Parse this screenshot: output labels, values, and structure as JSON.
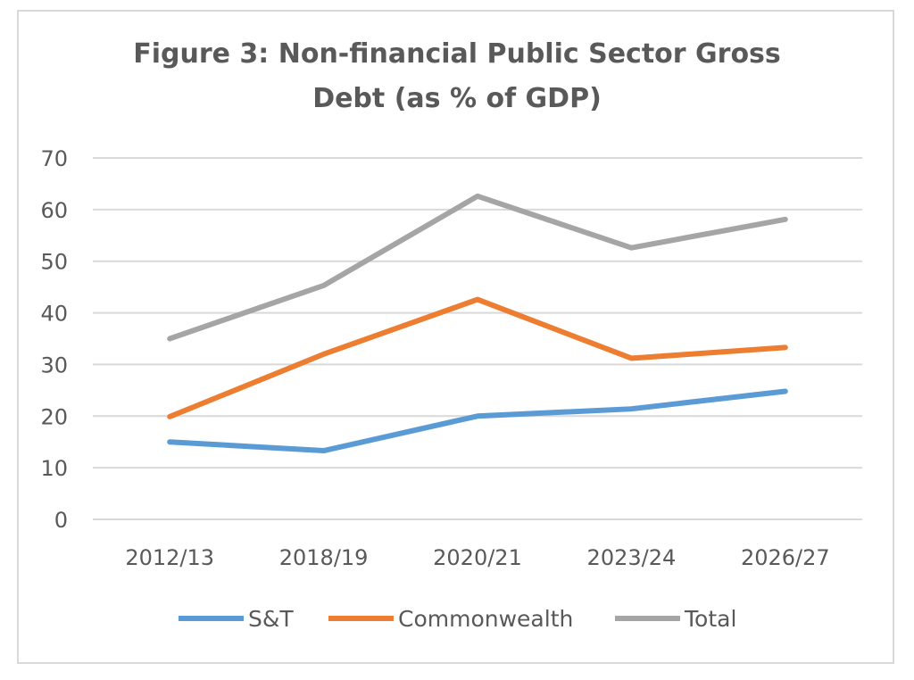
{
  "chart_data": {
    "type": "line",
    "title_lines": [
      "Figure 3: Non-financial Public Sector Gross",
      "Debt (as % of GDP)"
    ],
    "categories": [
      "2012/13",
      "2018/19",
      "2020/21",
      "2023/24",
      "2026/27"
    ],
    "series": [
      {
        "name": "S&T",
        "color": "#5b9bd5",
        "values": [
          15,
          13.3,
          20,
          21.4,
          24.8
        ]
      },
      {
        "name": "Commonwealth",
        "color": "#ed7d31",
        "values": [
          19.9,
          32,
          42.6,
          31.2,
          33.3
        ]
      },
      {
        "name": "Total",
        "color": "#a5a5a5",
        "values": [
          35,
          45.3,
          62.6,
          52.6,
          58.1
        ]
      }
    ],
    "ylim": [
      0,
      70
    ],
    "yticks": [
      0,
      10,
      20,
      30,
      40,
      50,
      60,
      70
    ],
    "grid": true,
    "legend_position": "bottom",
    "gridline_color": "#d9d9d9"
  }
}
